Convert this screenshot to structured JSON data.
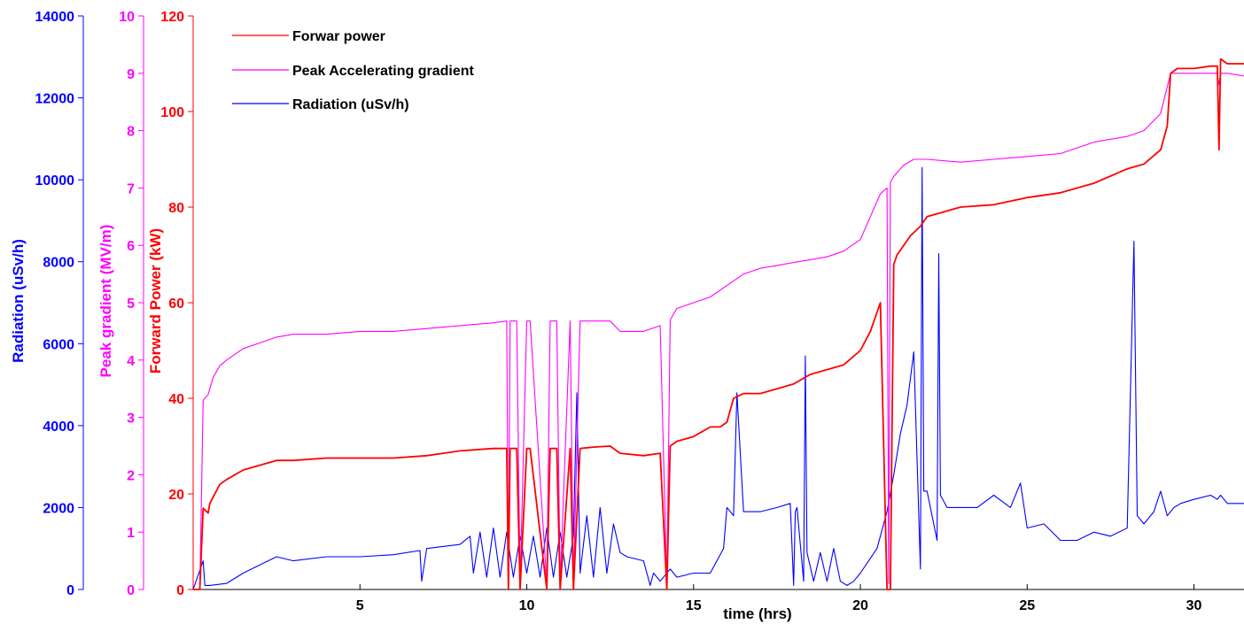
{
  "chart_data": {
    "type": "line",
    "xlabel": "time (hrs)",
    "xlim": [
      0,
      31.5
    ],
    "xticks": [
      5,
      10,
      15,
      20,
      25,
      30
    ],
    "y_axes": [
      {
        "id": "radiation",
        "label": "Radiation (uSv/h)",
        "color": "#0000ff",
        "ylim": [
          0,
          14000
        ],
        "ticks": [
          0,
          2000,
          4000,
          6000,
          8000,
          10000,
          12000,
          14000
        ]
      },
      {
        "id": "gradient",
        "label": "Peak gradient (MV/m)",
        "color": "#ff00ff",
        "ylim": [
          0,
          10
        ],
        "ticks": [
          0,
          1,
          2,
          3,
          4,
          5,
          6,
          7,
          8,
          9,
          10
        ]
      },
      {
        "id": "power",
        "label": "Forward Power (kW)",
        "color": "#ff0000",
        "ylim": [
          0,
          120
        ],
        "ticks": [
          0,
          20,
          40,
          60,
          80,
          100,
          120
        ]
      }
    ],
    "legend_position": "top-left",
    "series": [
      {
        "name": "Forwar power",
        "axis": "power",
        "color": "#ff0000",
        "x": [
          0,
          0.2,
          0.3,
          0.45,
          0.5,
          0.8,
          1.0,
          1.5,
          2.0,
          2.5,
          3.0,
          4.0,
          5.0,
          6.0,
          7.0,
          8.0,
          9.0,
          9.4,
          9.45,
          9.5,
          9.7,
          9.8,
          10.0,
          10.1,
          10.6,
          10.7,
          10.9,
          11.0,
          11.3,
          11.4,
          11.6,
          12.0,
          12.5,
          12.8,
          13.5,
          14.0,
          14.2,
          14.3,
          14.5,
          15.0,
          15.5,
          15.8,
          16.0,
          16.2,
          16.5,
          17.0,
          17.5,
          18.0,
          18.5,
          19.0,
          19.5,
          20.0,
          20.3,
          20.6,
          20.8,
          20.85,
          20.9,
          21.0,
          21.1,
          21.3,
          21.5,
          21.8,
          22.0,
          22.5,
          23.0,
          24.0,
          25.0,
          26.0,
          27.0,
          28.0,
          28.5,
          29.0,
          29.2,
          29.3,
          29.5,
          30.0,
          30.5,
          30.7,
          30.75,
          30.8,
          31.0,
          31.5
        ],
        "y": [
          0,
          0,
          17,
          16,
          18,
          22,
          23,
          25,
          26,
          27,
          27,
          27.5,
          27.5,
          27.5,
          28,
          29,
          29.5,
          29.5,
          0,
          29.5,
          29.5,
          0,
          29.5,
          29.5,
          0,
          29.5,
          29.5,
          0,
          29.5,
          0,
          29.5,
          29.8,
          30,
          28.5,
          28,
          28.5,
          0,
          30,
          31,
          32,
          34,
          34,
          35,
          40,
          41,
          41,
          42,
          43,
          45,
          46,
          47,
          50,
          54,
          60,
          0,
          0,
          0,
          68,
          70,
          72,
          74,
          76,
          78,
          79,
          80,
          80.5,
          82,
          83,
          85,
          88,
          89,
          92,
          97,
          108,
          109,
          109,
          109.5,
          109.5,
          92,
          111,
          110,
          110
        ]
      },
      {
        "name": "Peak Accelerating gradient",
        "axis": "gradient",
        "color": "#ff00ff",
        "x": [
          0,
          0.2,
          0.3,
          0.45,
          0.6,
          0.8,
          1.0,
          1.5,
          2.0,
          2.5,
          3.0,
          4.0,
          5.0,
          6.0,
          7.0,
          8.0,
          9.0,
          9.4,
          9.45,
          9.5,
          9.7,
          9.8,
          10.0,
          10.1,
          10.6,
          10.7,
          10.9,
          11.0,
          11.3,
          11.4,
          11.6,
          12.0,
          12.5,
          12.8,
          13.5,
          14.0,
          14.2,
          14.3,
          14.5,
          15.0,
          15.5,
          16.0,
          16.5,
          17.0,
          17.5,
          18.0,
          18.5,
          19.0,
          19.5,
          20.0,
          20.3,
          20.6,
          20.8,
          20.85,
          20.9,
          21.0,
          21.3,
          21.6,
          22.0,
          23.0,
          24.0,
          25.0,
          26.0,
          27.0,
          28.0,
          28.5,
          29.0,
          29.3,
          29.5,
          30.0,
          30.5,
          30.7,
          30.75,
          30.8,
          31.0,
          31.5
        ],
        "y": [
          0,
          0,
          3.3,
          3.4,
          3.7,
          3.9,
          4.0,
          4.2,
          4.3,
          4.4,
          4.45,
          4.45,
          4.5,
          4.5,
          4.55,
          4.6,
          4.65,
          4.68,
          0.1,
          4.68,
          4.68,
          0.1,
          4.68,
          4.68,
          0.1,
          4.68,
          4.68,
          0.1,
          4.68,
          0.1,
          4.68,
          4.68,
          4.68,
          4.5,
          4.5,
          4.6,
          0.1,
          4.7,
          4.9,
          5.0,
          5.1,
          5.3,
          5.5,
          5.6,
          5.65,
          5.7,
          5.75,
          5.8,
          5.9,
          6.1,
          6.5,
          6.9,
          7.0,
          0.1,
          7.1,
          7.2,
          7.4,
          7.5,
          7.5,
          7.45,
          7.5,
          7.55,
          7.6,
          7.8,
          7.9,
          8.0,
          8.3,
          9.0,
          9.0,
          9.0,
          9.0,
          9.0,
          8.8,
          9.0,
          9.0,
          8.95
        ]
      },
      {
        "name": "Radiation (uSv/h)",
        "axis": "radiation",
        "color": "#0000ff",
        "x": [
          0,
          0.3,
          0.35,
          0.5,
          1.0,
          1.5,
          2.0,
          2.5,
          3.0,
          4.0,
          5.0,
          6.0,
          6.8,
          6.85,
          7.0,
          8.0,
          8.3,
          8.4,
          8.6,
          8.8,
          9.0,
          9.2,
          9.4,
          9.6,
          9.8,
          10.0,
          10.2,
          10.4,
          10.6,
          10.8,
          11.0,
          11.2,
          11.4,
          11.5,
          11.6,
          11.8,
          12.0,
          12.2,
          12.4,
          12.6,
          12.8,
          13.0,
          13.5,
          13.7,
          13.8,
          14.0,
          14.3,
          14.5,
          15.0,
          15.5,
          15.9,
          16.0,
          16.2,
          16.3,
          16.5,
          17.0,
          17.5,
          17.9,
          18.0,
          18.05,
          18.1,
          18.3,
          18.35,
          18.4,
          18.6,
          18.8,
          19.0,
          19.2,
          19.4,
          19.6,
          19.8,
          20.0,
          20.5,
          20.8,
          21.0,
          21.2,
          21.4,
          21.6,
          21.8,
          21.85,
          21.9,
          22.0,
          22.3,
          22.35,
          22.4,
          22.6,
          23.0,
          23.5,
          24.0,
          24.5,
          24.8,
          25.0,
          25.5,
          26.0,
          26.5,
          27.0,
          27.5,
          28.0,
          28.2,
          28.3,
          28.5,
          28.8,
          29.0,
          29.2,
          29.4,
          29.6,
          30.0,
          30.5,
          30.7,
          30.8,
          31.0,
          31.5
        ],
        "y": [
          0,
          700,
          100,
          100,
          150,
          400,
          600,
          800,
          700,
          800,
          800,
          850,
          950,
          200,
          1000,
          1100,
          1300,
          400,
          1400,
          300,
          1500,
          300,
          1400,
          300,
          1300,
          400,
          1300,
          300,
          1500,
          300,
          1400,
          300,
          1300,
          4800,
          400,
          1800,
          300,
          2000,
          400,
          1600,
          900,
          800,
          700,
          100,
          400,
          200,
          500,
          300,
          400,
          400,
          1000,
          2000,
          1800,
          4800,
          1900,
          1900,
          2000,
          2100,
          100,
          1900,
          2000,
          200,
          5700,
          900,
          200,
          900,
          200,
          1000,
          200,
          100,
          200,
          400,
          1000,
          1900,
          2800,
          3800,
          4500,
          5800,
          500,
          10300,
          2400,
          2400,
          1200,
          8200,
          2300,
          2000,
          2000,
          2000,
          2300,
          2000,
          2600,
          1500,
          1600,
          1200,
          1200,
          1400,
          1300,
          1500,
          8500,
          1800,
          1600,
          1900,
          2400,
          1800,
          2000,
          2100,
          2200,
          2300,
          2200,
          2300,
          2100,
          2100
        ]
      }
    ]
  }
}
